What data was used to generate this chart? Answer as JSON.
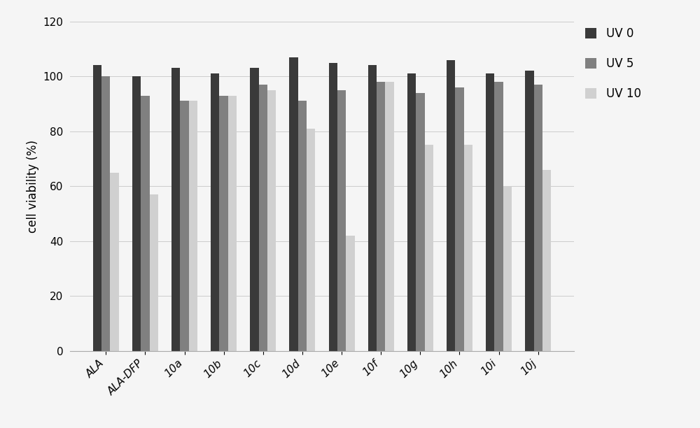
{
  "categories": [
    "ALA",
    "ALA-DFP",
    "10a",
    "10b",
    "10c",
    "10d",
    "10e",
    "10f",
    "10g",
    "10h",
    "10i",
    "10j"
  ],
  "uv0": [
    104,
    100,
    103,
    101,
    103,
    107,
    105,
    104,
    101,
    106,
    101,
    102
  ],
  "uv5": [
    100,
    93,
    91,
    93,
    97,
    91,
    95,
    98,
    94,
    96,
    98,
    97
  ],
  "uv10": [
    65,
    57,
    91,
    93,
    95,
    81,
    42,
    98,
    75,
    75,
    60,
    66
  ],
  "ylabel": "cell viability (%)",
  "ylim": [
    0,
    120
  ],
  "yticks": [
    0,
    20,
    40,
    60,
    80,
    100,
    120
  ],
  "legend_labels": [
    "UV 0",
    "UV 5",
    "UV 10"
  ],
  "color_uv0": "#3a3a3a",
  "color_uv5": "#808080",
  "color_uv10": "#d0d0d0",
  "background_color": "#f5f5f5",
  "bar_width": 0.22,
  "figsize": [
    10.0,
    6.12
  ],
  "dpi": 100
}
